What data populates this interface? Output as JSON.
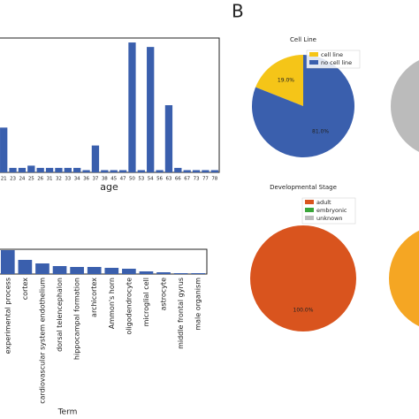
{
  "panel_label": "B",
  "chart_data": [
    {
      "type": "bar",
      "xlabel": "age",
      "color": "#3a5fad",
      "categories": [
        "21",
        "23",
        "24",
        "25",
        "26",
        "31",
        "32",
        "33",
        "34",
        "36",
        "37",
        "38",
        "45",
        "47",
        "50",
        "53",
        "54",
        "56",
        "63",
        "66",
        "67",
        "73",
        "77",
        "78"
      ],
      "values": [
        10,
        1,
        1,
        1.5,
        1,
        1,
        1,
        1,
        1,
        0.5,
        6,
        0.5,
        0.5,
        0.5,
        29,
        0.5,
        28,
        0.5,
        15,
        1,
        0.5,
        0.5,
        0.5,
        0.5
      ],
      "ylim": [
        0,
        30
      ]
    },
    {
      "type": "bar",
      "xlabel": "Term",
      "color": "#3a5fad",
      "rotate_labels": true,
      "categories": [
        "experimental process",
        "cortex",
        "cardiovascular system endothelium",
        "dorsal telencephalon",
        "hippocampal formation",
        "archicortex",
        "Ammon's horn",
        "oligodendrocyte",
        "microglial cell",
        "astrocyte",
        "middle frontal gyrus",
        "male organism"
      ],
      "values": [
        27,
        16,
        12,
        9,
        8,
        8,
        7,
        6,
        3,
        2,
        1,
        1
      ],
      "ylim": [
        0,
        28
      ]
    },
    {
      "type": "pie",
      "title": "Cell Line",
      "categories": [
        "cell line",
        "no cell line"
      ],
      "values": [
        19,
        81
      ],
      "value_labels": [
        "19.0%",
        "81.0%"
      ],
      "colors": [
        "#f5c518",
        "#3a5fad"
      ]
    },
    {
      "type": "pie",
      "title": "Developmental Stage",
      "categories": [
        "adult",
        "embryonic",
        "unknown"
      ],
      "values": [
        100,
        0,
        0
      ],
      "value_labels": [
        "100.0%",
        null,
        null
      ],
      "colors": [
        "#d9541e",
        "#3aa63a",
        "#bbbbbb"
      ]
    }
  ]
}
